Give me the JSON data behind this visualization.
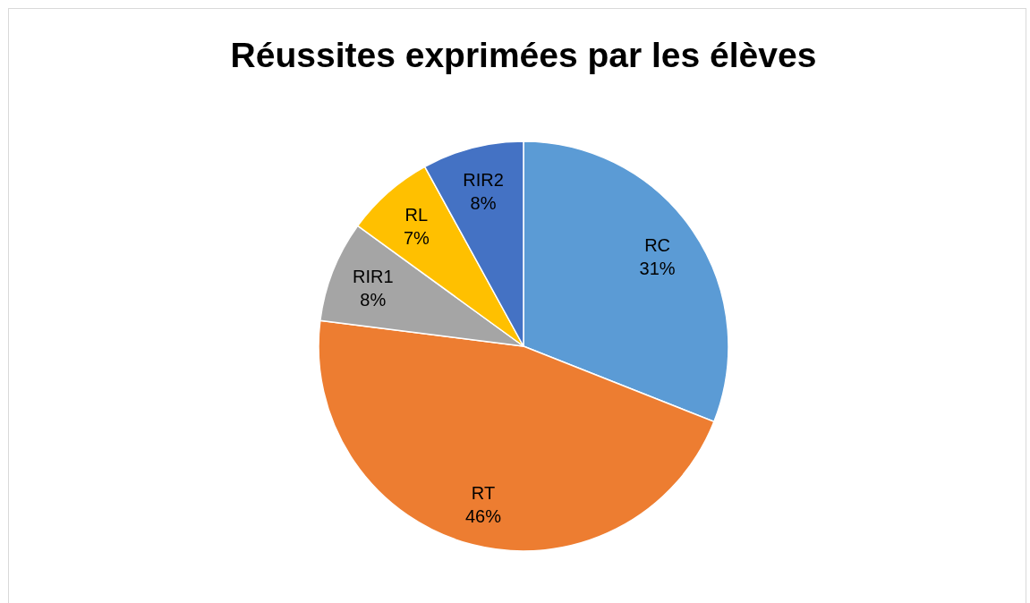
{
  "chart_data": {
    "type": "pie",
    "title": "Réussites exprimées par les élèves",
    "categories": [
      "RC",
      "RT",
      "RIR1",
      "RL",
      "RIR2"
    ],
    "values": [
      31,
      46,
      8,
      7,
      8
    ],
    "colors": [
      "#5b9bd5",
      "#ed7d31",
      "#a5a5a5",
      "#ffc000",
      "#4472c4"
    ],
    "value_labels": [
      "31%",
      "46%",
      "8%",
      "7%",
      "8%"
    ],
    "legend": false
  }
}
